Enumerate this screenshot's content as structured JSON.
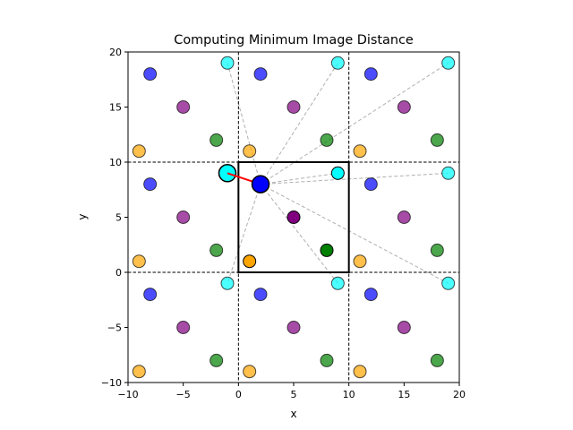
{
  "chart_data": {
    "type": "scatter",
    "title": "Computing Minimum Image Distance",
    "xlabel": "x",
    "ylabel": "y",
    "xlim": [
      -10,
      20
    ],
    "ylim": [
      -10,
      20
    ],
    "xticks": [
      -10,
      -5,
      0,
      5,
      10,
      15,
      20
    ],
    "yticks": [
      -10,
      -5,
      0,
      5,
      10,
      15,
      20
    ],
    "xtick_labels": [
      "−10",
      "−5",
      "0",
      "5",
      "10",
      "15",
      "20"
    ],
    "ytick_labels": [
      "−10",
      "−5",
      "0",
      "5",
      "10",
      "15",
      "20"
    ],
    "grid": false,
    "legend": "none",
    "box_size": 10,
    "primary_cell": {
      "x0": 0,
      "y0": 0,
      "x1": 10,
      "y1": 10
    },
    "cell_boundaries": {
      "x": [
        0,
        10
      ],
      "y": [
        0,
        10
      ]
    },
    "particles": [
      {
        "name": "blue",
        "color": "#0000ff",
        "x": 2,
        "y": 8
      },
      {
        "name": "cyan",
        "color": "#00ffff",
        "x": 9,
        "y": 9
      },
      {
        "name": "purple",
        "color": "#800080",
        "x": 5,
        "y": 5
      },
      {
        "name": "green",
        "color": "#008000",
        "x": 8,
        "y": 2
      },
      {
        "name": "orange",
        "color": "#ffa500",
        "x": 1,
        "y": 1
      }
    ],
    "image_offsets": [
      -10,
      0,
      10
    ],
    "reference_particle": {
      "x": 2,
      "y": 8
    },
    "distance_lines_to": [
      {
        "x": -1,
        "y": 19
      },
      {
        "x": 9,
        "y": 19
      },
      {
        "x": 19,
        "y": 19
      },
      {
        "x": -1,
        "y": 9
      },
      {
        "x": 9,
        "y": 9
      },
      {
        "x": 19,
        "y": 9
      },
      {
        "x": -1,
        "y": -1
      },
      {
        "x": 9,
        "y": -1
      },
      {
        "x": 19,
        "y": -1
      }
    ],
    "minimum_image": {
      "x": -1,
      "y": 9,
      "color": "#00ffff"
    },
    "minimum_line_color": "#ff0000"
  }
}
